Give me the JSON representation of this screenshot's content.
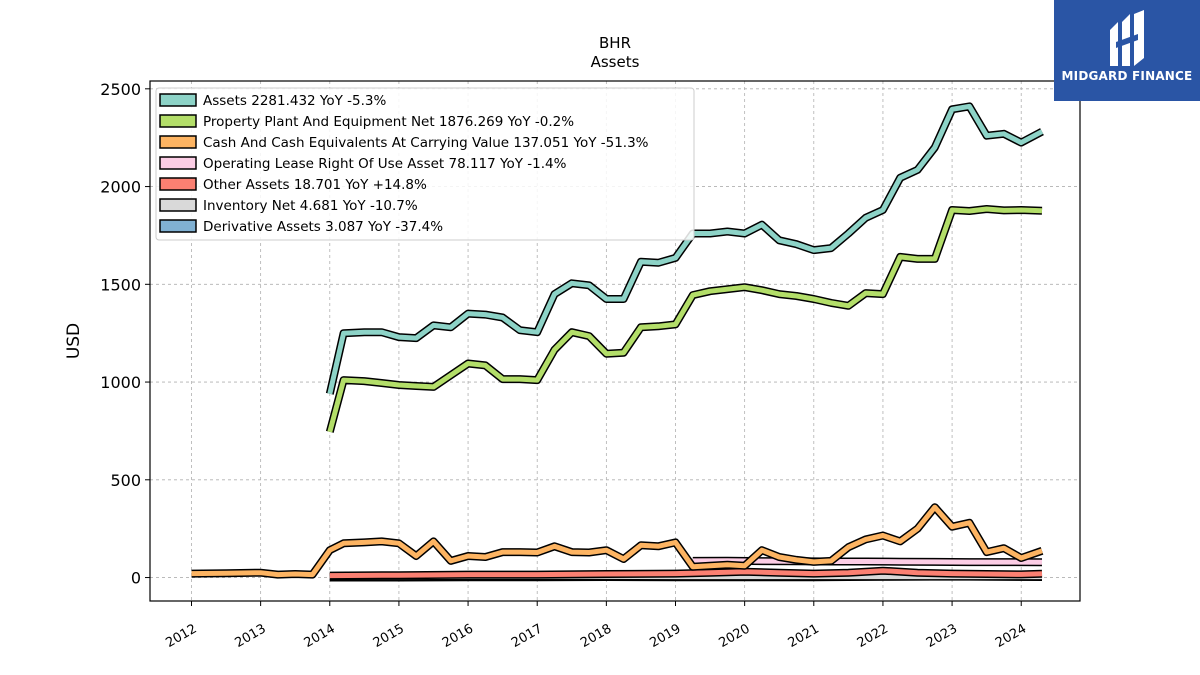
{
  "brand": {
    "name": "MIDGARD FINANCE",
    "mark_icon": "midgard-logo-icon",
    "bg_color": "#2a55a5"
  },
  "chart_data": {
    "type": "line",
    "title": "BHR",
    "subtitle": "Assets",
    "xlabel": "",
    "ylabel": "USD",
    "xlim": [
      2011.4,
      2024.85
    ],
    "ylim": [
      -120,
      2540
    ],
    "yticks": [
      0,
      500,
      1000,
      1500,
      2000,
      2500
    ],
    "xticks": [
      2012,
      2013,
      2014,
      2015,
      2016,
      2017,
      2018,
      2019,
      2020,
      2021,
      2022,
      2023,
      2024
    ],
    "grid": true,
    "legend_position": "top-left",
    "series": [
      {
        "name": "Assets",
        "legend": "Assets  2281.432 YoY -5.3%",
        "color": "#8dd3c7",
        "points": [
          [
            2014.0,
            940
          ],
          [
            2014.2,
            1250
          ],
          [
            2014.5,
            1255
          ],
          [
            2014.75,
            1255
          ],
          [
            2015.0,
            1230
          ],
          [
            2015.25,
            1225
          ],
          [
            2015.5,
            1290
          ],
          [
            2015.75,
            1280
          ],
          [
            2016.0,
            1350
          ],
          [
            2016.25,
            1345
          ],
          [
            2016.5,
            1330
          ],
          [
            2016.75,
            1265
          ],
          [
            2017.0,
            1255
          ],
          [
            2017.25,
            1450
          ],
          [
            2017.5,
            1505
          ],
          [
            2017.75,
            1495
          ],
          [
            2018.0,
            1425
          ],
          [
            2018.25,
            1425
          ],
          [
            2018.5,
            1615
          ],
          [
            2018.75,
            1610
          ],
          [
            2019.0,
            1635
          ],
          [
            2019.25,
            1760
          ],
          [
            2019.5,
            1760
          ],
          [
            2019.75,
            1770
          ],
          [
            2020.0,
            1760
          ],
          [
            2020.25,
            1805
          ],
          [
            2020.5,
            1725
          ],
          [
            2020.75,
            1705
          ],
          [
            2021.0,
            1675
          ],
          [
            2021.25,
            1685
          ],
          [
            2021.5,
            1760
          ],
          [
            2021.75,
            1840
          ],
          [
            2022.0,
            1880
          ],
          [
            2022.25,
            2045
          ],
          [
            2022.5,
            2085
          ],
          [
            2022.75,
            2200
          ],
          [
            2023.0,
            2395
          ],
          [
            2023.25,
            2410
          ],
          [
            2023.5,
            2260
          ],
          [
            2023.75,
            2270
          ],
          [
            2024.0,
            2225
          ],
          [
            2024.3,
            2281
          ]
        ]
      },
      {
        "name": "Property Plant And Equipment Net",
        "legend": "Property Plant And Equipment Net  1876.269 YoY -0.2%",
        "color": "#b3de69",
        "points": [
          [
            2014.0,
            745
          ],
          [
            2014.2,
            1010
          ],
          [
            2014.5,
            1005
          ],
          [
            2014.75,
            995
          ],
          [
            2015.0,
            985
          ],
          [
            2015.25,
            980
          ],
          [
            2015.5,
            975
          ],
          [
            2015.75,
            1035
          ],
          [
            2016.0,
            1095
          ],
          [
            2016.25,
            1085
          ],
          [
            2016.5,
            1015
          ],
          [
            2016.75,
            1015
          ],
          [
            2017.0,
            1010
          ],
          [
            2017.25,
            1165
          ],
          [
            2017.5,
            1255
          ],
          [
            2017.75,
            1235
          ],
          [
            2018.0,
            1145
          ],
          [
            2018.25,
            1150
          ],
          [
            2018.5,
            1280
          ],
          [
            2018.75,
            1285
          ],
          [
            2019.0,
            1295
          ],
          [
            2019.25,
            1445
          ],
          [
            2019.5,
            1465
          ],
          [
            2019.75,
            1475
          ],
          [
            2020.0,
            1485
          ],
          [
            2020.25,
            1470
          ],
          [
            2020.5,
            1450
          ],
          [
            2020.75,
            1440
          ],
          [
            2021.0,
            1425
          ],
          [
            2021.25,
            1405
          ],
          [
            2021.5,
            1390
          ],
          [
            2021.75,
            1455
          ],
          [
            2022.0,
            1450
          ],
          [
            2022.25,
            1640
          ],
          [
            2022.5,
            1630
          ],
          [
            2022.75,
            1630
          ],
          [
            2023.0,
            1880
          ],
          [
            2023.25,
            1875
          ],
          [
            2023.5,
            1885
          ],
          [
            2023.75,
            1878
          ],
          [
            2024.0,
            1880
          ],
          [
            2024.3,
            1876
          ]
        ]
      },
      {
        "name": "Cash And Cash Equivalents At Carrying Value",
        "legend": "Cash And Cash Equivalents At Carrying Value  137.051 YoY -51.3%",
        "color": "#fdb462",
        "points": [
          [
            2012.0,
            20
          ],
          [
            2012.5,
            22
          ],
          [
            2013.0,
            25
          ],
          [
            2013.25,
            15
          ],
          [
            2013.5,
            18
          ],
          [
            2013.75,
            15
          ],
          [
            2014.0,
            140
          ],
          [
            2014.2,
            175
          ],
          [
            2014.5,
            180
          ],
          [
            2014.75,
            185
          ],
          [
            2015.0,
            175
          ],
          [
            2015.25,
            110
          ],
          [
            2015.5,
            185
          ],
          [
            2015.75,
            85
          ],
          [
            2016.0,
            110
          ],
          [
            2016.25,
            105
          ],
          [
            2016.5,
            130
          ],
          [
            2016.75,
            130
          ],
          [
            2017.0,
            128
          ],
          [
            2017.25,
            160
          ],
          [
            2017.5,
            130
          ],
          [
            2017.75,
            128
          ],
          [
            2018.0,
            140
          ],
          [
            2018.25,
            95
          ],
          [
            2018.5,
            165
          ],
          [
            2018.75,
            160
          ],
          [
            2019.0,
            180
          ],
          [
            2019.25,
            55
          ],
          [
            2019.5,
            60
          ],
          [
            2019.75,
            65
          ],
          [
            2020.0,
            60
          ],
          [
            2020.25,
            140
          ],
          [
            2020.5,
            105
          ],
          [
            2020.75,
            90
          ],
          [
            2021.0,
            80
          ],
          [
            2021.25,
            85
          ],
          [
            2021.5,
            155
          ],
          [
            2021.75,
            195
          ],
          [
            2022.0,
            215
          ],
          [
            2022.25,
            185
          ],
          [
            2022.5,
            250
          ],
          [
            2022.75,
            360
          ],
          [
            2023.0,
            260
          ],
          [
            2023.25,
            280
          ],
          [
            2023.5,
            130
          ],
          [
            2023.75,
            150
          ],
          [
            2024.0,
            100
          ],
          [
            2024.3,
            137
          ]
        ]
      },
      {
        "name": "Operating Lease Right Of Use Asset",
        "legend": "Operating Lease Right Of Use Asset  78.117 YoY -1.4%",
        "color": "#fccde5",
        "points": [
          [
            2019.25,
            85
          ],
          [
            2019.75,
            86
          ],
          [
            2020.25,
            84
          ],
          [
            2020.75,
            83
          ],
          [
            2021.25,
            82
          ],
          [
            2021.75,
            82
          ],
          [
            2022.25,
            81
          ],
          [
            2022.75,
            80
          ],
          [
            2023.25,
            79
          ],
          [
            2023.75,
            79
          ],
          [
            2024.3,
            78
          ]
        ]
      },
      {
        "name": "Other Assets",
        "legend": "Other Assets  18.701 YoY +14.8%",
        "color": "#fb8072",
        "points": [
          [
            2014.0,
            10
          ],
          [
            2015.0,
            12
          ],
          [
            2016.0,
            15
          ],
          [
            2017.0,
            15
          ],
          [
            2018.0,
            18
          ],
          [
            2019.0,
            20
          ],
          [
            2019.5,
            25
          ],
          [
            2020.0,
            30
          ],
          [
            2020.5,
            25
          ],
          [
            2021.0,
            20
          ],
          [
            2021.5,
            25
          ],
          [
            2022.0,
            35
          ],
          [
            2022.5,
            25
          ],
          [
            2023.0,
            20
          ],
          [
            2023.5,
            18
          ],
          [
            2024.0,
            16
          ],
          [
            2024.3,
            19
          ]
        ]
      },
      {
        "name": "Inventory Net",
        "legend": "Inventory Net  4.681 YoY -10.7%",
        "color": "#d9d9d9",
        "points": [
          [
            2014.0,
            5
          ],
          [
            2015.0,
            5
          ],
          [
            2016.0,
            6
          ],
          [
            2017.0,
            6
          ],
          [
            2018.0,
            6
          ],
          [
            2019.0,
            5
          ],
          [
            2020.0,
            5
          ],
          [
            2021.0,
            5
          ],
          [
            2022.0,
            5
          ],
          [
            2023.0,
            5
          ],
          [
            2024.3,
            5
          ]
        ]
      },
      {
        "name": "Derivative Assets",
        "legend": "Derivative Assets  3.087 YoY -37.4%",
        "color": "#80b1d3",
        "points": [
          [
            2014.0,
            0
          ],
          [
            2015.0,
            0
          ],
          [
            2016.0,
            1
          ],
          [
            2017.0,
            2
          ],
          [
            2018.0,
            3
          ],
          [
            2019.0,
            2
          ],
          [
            2020.0,
            1
          ],
          [
            2021.0,
            1
          ],
          [
            2022.0,
            4
          ],
          [
            2023.0,
            6
          ],
          [
            2024.3,
            3
          ]
        ]
      }
    ]
  }
}
